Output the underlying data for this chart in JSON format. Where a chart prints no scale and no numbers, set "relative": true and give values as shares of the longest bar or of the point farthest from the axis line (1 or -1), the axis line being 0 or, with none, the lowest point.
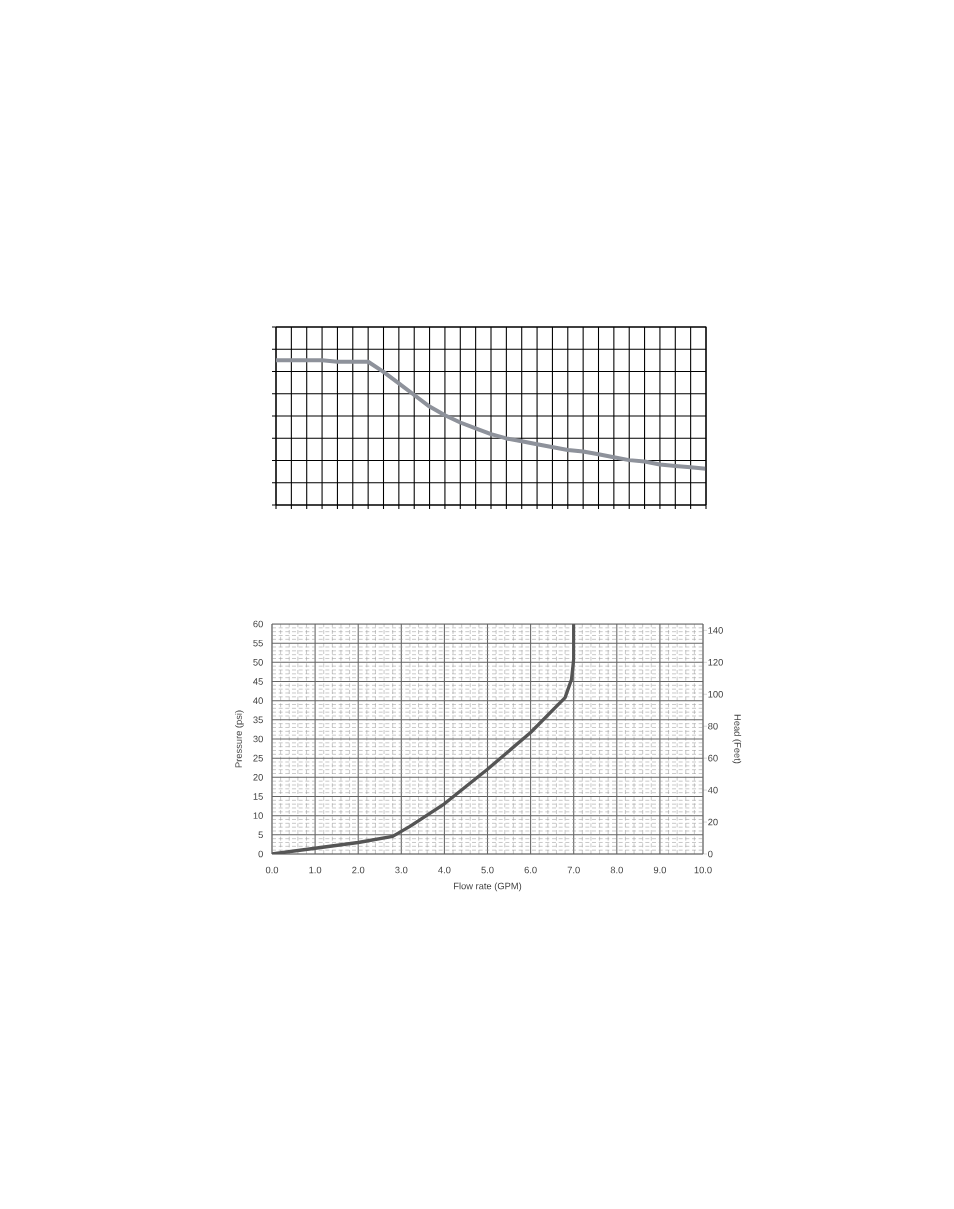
{
  "chart_data": [
    {
      "type": "line",
      "relative": true,
      "grid": true,
      "color": "#8e929b",
      "categories": [
        null,
        null,
        null,
        null,
        null,
        null,
        null,
        null,
        null,
        null,
        null,
        null,
        null,
        null,
        null,
        null,
        null,
        null,
        null,
        null,
        null,
        null,
        null,
        null,
        null,
        null,
        null,
        null,
        null
      ],
      "values": [
        1.0,
        1.0,
        1.0,
        1.0,
        0.99,
        0.99,
        0.99,
        0.92,
        0.84,
        0.76,
        0.68,
        0.62,
        0.57,
        0.53,
        0.49,
        0.46,
        0.44,
        0.42,
        0.4,
        0.38,
        0.37,
        0.35,
        0.33,
        0.31,
        0.3,
        0.28,
        0.27,
        0.26,
        0.25
      ]
    },
    {
      "type": "line",
      "grid": true,
      "color": "#555555",
      "xlabel": "Flow rate (GPM)",
      "ylabel": "Pressure (psi)",
      "y2label": "Head (Feet)",
      "x": [
        0,
        1.0,
        2.0,
        2.8,
        3.2,
        4.0,
        5.0,
        6.0,
        6.8,
        6.95,
        7.0,
        7.0
      ],
      "values": [
        0,
        1.5,
        3.0,
        4.6,
        7.2,
        13.1,
        22.1,
        31.7,
        40.8,
        45.6,
        50.8,
        60
      ],
      "xlim": [
        0,
        10
      ],
      "ylim": [
        0,
        60
      ],
      "y2lim": [
        0,
        144
      ],
      "xticks": [
        {
          "value": 0,
          "label": "0.0"
        },
        {
          "value": 1,
          "label": "1.0"
        },
        {
          "value": 2,
          "label": "2.0"
        },
        {
          "value": 3,
          "label": "3.0"
        },
        {
          "value": 4,
          "label": "4.0"
        },
        {
          "value": 5,
          "label": "5.0"
        },
        {
          "value": 6,
          "label": "6.0"
        },
        {
          "value": 7,
          "label": "7.0"
        },
        {
          "value": 8,
          "label": "8.0"
        },
        {
          "value": 9,
          "label": "9.0"
        },
        {
          "value": 10,
          "label": "10.0"
        }
      ],
      "yticks": [
        0,
        5,
        10,
        15,
        20,
        25,
        30,
        35,
        40,
        45,
        50,
        55,
        60
      ],
      "y2ticks": [
        0,
        20,
        40,
        60,
        80,
        100,
        120,
        140
      ]
    }
  ]
}
